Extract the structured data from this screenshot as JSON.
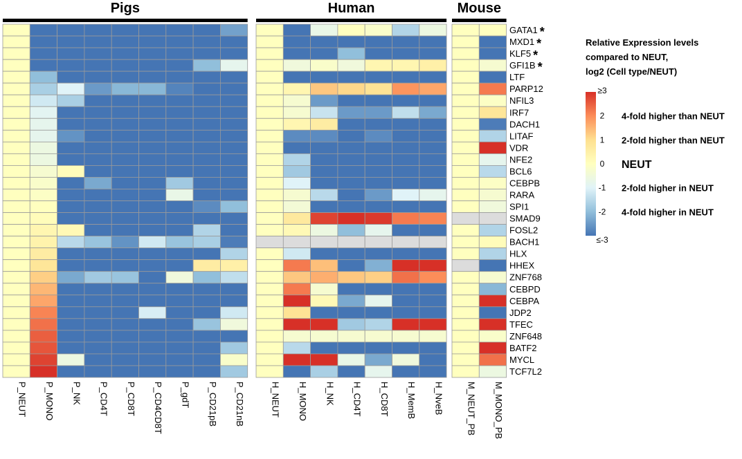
{
  "chart_data": {
    "type": "heatmap",
    "panels": [
      {
        "title": "Pigs",
        "columns": [
          "P_NEUT",
          "P_MONO",
          "P_NK",
          "P_CD4T",
          "P_CD8T",
          "P_CD4CD8T",
          "P_gdT",
          "P_CD21pB",
          "P_CD21nB"
        ],
        "values": [
          [
            0,
            -3,
            -3,
            -3,
            -3,
            -3,
            -3,
            -3,
            -2.4
          ],
          [
            0,
            -3,
            -3,
            -3,
            -3,
            -3,
            -3,
            -3,
            -3
          ],
          [
            0,
            -3,
            -3,
            -3,
            -3,
            -3,
            -3,
            -3,
            -3
          ],
          [
            0,
            -3,
            -3,
            -3,
            -3,
            -3,
            -3,
            -2,
            -0.8
          ],
          [
            0,
            -2,
            -3,
            -3,
            -3,
            -3,
            -3,
            -3,
            -3
          ],
          [
            0,
            -1.7,
            -1,
            -2.5,
            -2.1,
            -2.1,
            -2.8,
            -3,
            -3
          ],
          [
            0,
            -1.2,
            -1.7,
            -3,
            -3,
            -3,
            -3,
            -3,
            -3
          ],
          [
            0,
            -0.9,
            -3,
            -3,
            -3,
            -3,
            -3,
            -3,
            -3
          ],
          [
            0,
            -0.8,
            -3,
            -3,
            -3,
            -3,
            -3,
            -3,
            -3
          ],
          [
            0,
            -0.8,
            -2.6,
            -3,
            -3,
            -3,
            -3,
            -3,
            -3
          ],
          [
            0,
            -0.6,
            -3,
            -3,
            -3,
            -3,
            -3,
            -3,
            -3
          ],
          [
            0,
            -0.6,
            -3,
            -3,
            -3,
            -3,
            -3,
            -3,
            -3
          ],
          [
            0,
            -0.3,
            0.1,
            -3,
            -3,
            -3,
            -3,
            -3,
            -3
          ],
          [
            0,
            -0.2,
            -3,
            -2.3,
            -3,
            -3,
            -1.8,
            -3,
            -3
          ],
          [
            0,
            -0.1,
            -3,
            -3,
            -3,
            -3,
            -0.7,
            -3,
            -3
          ],
          [
            0,
            0,
            -3,
            -3,
            -3,
            -3,
            -3,
            -2.7,
            -2
          ],
          [
            0,
            0.1,
            -3,
            -3,
            -3,
            -3,
            -3,
            -3,
            -3
          ],
          [
            0,
            0.3,
            0.2,
            -3,
            -3,
            -3,
            -3,
            -1.6,
            -3
          ],
          [
            0,
            0.4,
            -1.5,
            -1.9,
            -2.6,
            -1.2,
            -1.9,
            -1.7,
            -2.9
          ],
          [
            0,
            0.6,
            -3,
            -3,
            -3,
            -3,
            -3,
            -3,
            -1.6
          ],
          [
            0,
            0.8,
            -3,
            -3,
            -3,
            -3,
            -3,
            0.6,
            0.5
          ],
          [
            0,
            1.2,
            -2.3,
            -1.8,
            -1.9,
            -3,
            -0.5,
            -2,
            -1.4
          ],
          [
            0,
            1.5,
            -3,
            -3,
            -3,
            -3,
            -3,
            -3,
            -3
          ],
          [
            0,
            1.7,
            -3,
            -3,
            -3,
            -3,
            -3,
            -3,
            -3
          ],
          [
            0,
            2.1,
            -3,
            -3,
            -3,
            -1.1,
            -3,
            -3,
            -1.2
          ],
          [
            0,
            2.3,
            -3,
            -3,
            -3,
            -3,
            -3,
            -1.9,
            -0.5
          ],
          [
            0,
            2.5,
            -3,
            -3,
            -3,
            -3,
            -3,
            -3,
            -3
          ],
          [
            0,
            2.6,
            -3,
            -3,
            -3,
            -3,
            -3,
            -3,
            -1.8
          ],
          [
            0,
            2.8,
            -0.6,
            -3,
            -3,
            -3,
            -3,
            -3,
            -0.2
          ],
          [
            0,
            3,
            -3,
            -3,
            -3,
            -3,
            -3,
            -3,
            -1.8
          ]
        ]
      },
      {
        "title": "Human",
        "columns": [
          "H_NEUT",
          "H_MONO",
          "H_NK",
          "H_CD4T",
          "H_CD8T",
          "H_MemB",
          "H_NveB"
        ],
        "values": [
          [
            0,
            -3,
            -0.7,
            0,
            -0.2,
            -1.6,
            -0.6
          ],
          [
            0,
            -3,
            -3,
            -3,
            -3,
            -3,
            -3
          ],
          [
            0,
            -3,
            -3,
            -2,
            -3,
            -3,
            -3
          ],
          [
            0,
            -0.5,
            -0.2,
            -0.5,
            0.3,
            0.3,
            0.5
          ],
          [
            0,
            -3,
            -3,
            -3,
            -3,
            -3,
            -3
          ],
          [
            0,
            0.3,
            1.3,
            1.1,
            0.9,
            1.9,
            1.7
          ],
          [
            0,
            -0.3,
            -2.5,
            -3,
            -3,
            -3,
            -3
          ],
          [
            0,
            -0.3,
            -1.3,
            -2.5,
            -2.5,
            -1.4,
            -2.3
          ],
          [
            0,
            0.3,
            0.6,
            -3,
            -3,
            -3,
            -3
          ],
          [
            0,
            -2.7,
            -2.7,
            -3,
            -2.7,
            -3,
            -3
          ],
          [
            0,
            -3,
            -3,
            -3,
            -3,
            -3,
            -3
          ],
          [
            0,
            -1.6,
            -3,
            -3,
            -3,
            -3,
            -3
          ],
          [
            0,
            -1.8,
            -3,
            -3,
            -3,
            -3,
            -3
          ],
          [
            0,
            -1,
            -3,
            -3,
            -3,
            -3,
            -3
          ],
          [
            0,
            -0.3,
            -1.5,
            -3,
            -2.5,
            -1,
            -0.8
          ],
          [
            0,
            -0.4,
            -3,
            -3,
            -3,
            -3,
            -3
          ],
          [
            0,
            0.7,
            2.8,
            3,
            2.9,
            2.2,
            2.1
          ],
          [
            0,
            0.2,
            -0.6,
            -2,
            -0.8,
            -3,
            -3
          ],
          [
            null,
            null,
            null,
            null,
            null,
            null,
            null
          ],
          [
            0,
            -1.2,
            -3,
            -3,
            -3,
            -3,
            -3
          ],
          [
            0,
            2.2,
            1.4,
            -3,
            -2.2,
            3,
            3
          ],
          [
            0,
            1.3,
            1.6,
            1.3,
            1.2,
            2.3,
            2
          ],
          [
            0,
            2.2,
            -0.3,
            -3,
            -3,
            -3,
            -3
          ],
          [
            0,
            3,
            0.2,
            -2.3,
            -0.8,
            -3,
            -3
          ],
          [
            0,
            0.9,
            -3,
            -3,
            -3,
            -3,
            -3
          ],
          [
            0,
            3,
            3,
            -1.8,
            -1.6,
            3,
            3
          ],
          [
            0,
            -0.3,
            -0.3,
            -0.3,
            -0.3,
            -0.3,
            -0.3
          ],
          [
            0,
            -1.5,
            -3,
            -3,
            -3,
            -3,
            -3
          ],
          [
            0,
            3,
            3,
            -0.7,
            -2.3,
            -0.5,
            -3
          ],
          [
            0,
            -3,
            -1.7,
            -3,
            -0.8,
            -3,
            -3
          ]
        ]
      },
      {
        "title": "Mouse",
        "columns": [
          "M_NEUT_PB",
          "M_MONO_PB"
        ],
        "values": [
          [
            0,
            0
          ],
          [
            0,
            -3
          ],
          [
            0,
            -3
          ],
          [
            0,
            -0.3
          ],
          [
            0,
            -3
          ],
          [
            0,
            2.2
          ],
          [
            0,
            -0.1
          ],
          [
            0,
            0.8
          ],
          [
            0,
            -2.9
          ],
          [
            0,
            -1.6
          ],
          [
            0,
            3
          ],
          [
            0,
            -0.8
          ],
          [
            0,
            -1.5
          ],
          [
            0,
            -0.1
          ],
          [
            0,
            -0.3
          ],
          [
            0,
            -0.5
          ],
          [
            null,
            null
          ],
          [
            0,
            -1.6
          ],
          [
            0,
            0.1
          ],
          [
            0,
            -1.6
          ],
          [
            null,
            -3
          ],
          [
            0,
            -0.3
          ],
          [
            0,
            -2.1
          ],
          [
            0,
            3
          ],
          [
            0,
            -3
          ],
          [
            0,
            3
          ],
          [
            0,
            -0.2
          ],
          [
            0,
            3
          ],
          [
            0,
            2.3
          ],
          [
            0,
            -0.6
          ]
        ]
      }
    ],
    "rows": [
      "GATA1",
      "MXD1",
      "KLF5",
      "GFI1B",
      "LTF",
      "PARP12",
      "NFIL3",
      "IRF7",
      "DACH1",
      "LITAF",
      "VDR",
      "NFE2",
      "BCL6",
      "CEBPB",
      "RARA",
      "SPI1",
      "SMAD9",
      "FOSL2",
      "BACH1",
      "HLX",
      "HHEX",
      "ZNF768",
      "CEBPD",
      "CEBPA",
      "JDP2",
      "TFEC",
      "ZNF648",
      "BATF2",
      "MYCL",
      "TCF7L2"
    ],
    "starred_rows": [
      "GATA1",
      "MXD1",
      "KLF5",
      "GFI1B"
    ],
    "asterisk": "*",
    "value_range": [
      -3,
      3
    ],
    "missing_color": "#dcdcdc",
    "color_scale": [
      "#4575b4",
      "#91bfdb",
      "#e0f3f8",
      "#ffffbf",
      "#fee090",
      "#fc8d59",
      "#d73027"
    ],
    "legend": {
      "title_lines": [
        "Relative Expression levels",
        "compared to NEUT,",
        "log2 (Cell type/NEUT)"
      ],
      "ticks": [
        {
          "label": "≥3",
          "value": 3,
          "desc": ""
        },
        {
          "label": "2",
          "value": 2,
          "desc": "4-fold higher than NEUT"
        },
        {
          "label": "1",
          "value": 1,
          "desc": "2-fold higher than NEUT"
        },
        {
          "label": "0",
          "value": 0,
          "desc": "NEUT"
        },
        {
          "label": "-1",
          "value": -1,
          "desc": "2-fold higher in NEUT"
        },
        {
          "label": "-2",
          "value": -2,
          "desc": "4-fold higher in NEUT"
        },
        {
          "label": "≤-3",
          "value": -3,
          "desc": ""
        }
      ]
    }
  }
}
